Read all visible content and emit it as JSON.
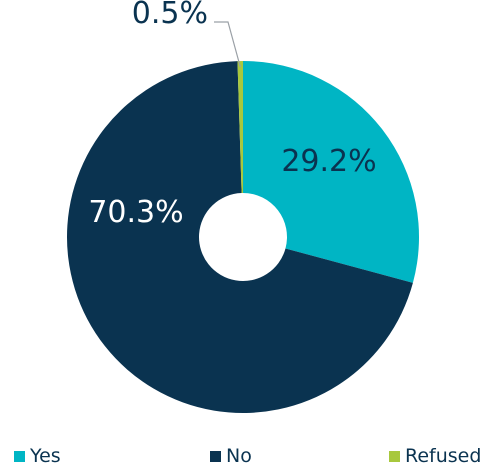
{
  "chart_data": {
    "type": "pie",
    "donut": true,
    "categories": [
      "Yes",
      "No",
      "Refused"
    ],
    "values": [
      29.2,
      70.3,
      0.5
    ],
    "data_labels": [
      "29.2%",
      "70.3%",
      "0.5%"
    ],
    "colors": [
      "#00b5c4",
      "#0a3350",
      "#a8c83d"
    ],
    "label_colors": [
      "#0a3350",
      "#ffffff",
      "#0a3350"
    ],
    "leader_color": "#9aa0a6",
    "start_angle_deg": 0,
    "direction": "clockwise",
    "legend": {
      "placement": "bottom",
      "entries": [
        "Yes",
        "No",
        "Refused"
      ]
    },
    "title": "",
    "xlabel": "",
    "ylabel": ""
  }
}
